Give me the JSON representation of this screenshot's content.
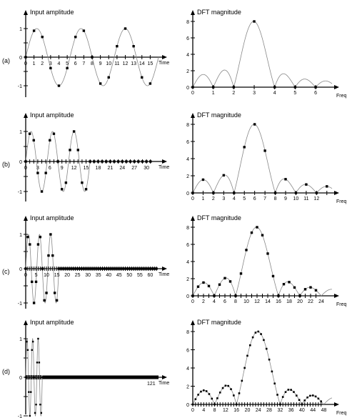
{
  "row_labels": [
    "(a)",
    "(b)",
    "(c)",
    "(d)"
  ],
  "chart_data": [
    {
      "type": "scatter",
      "row": "(a)",
      "title": "Input amplitude",
      "xlabel": "Time",
      "x_tick_labels": [
        "0",
        "1",
        "2",
        "3",
        "4",
        "5",
        "6",
        "7",
        "8",
        "9",
        "10",
        "11",
        "12",
        "13",
        "14",
        "15"
      ],
      "y_tick_labels": [
        "-1",
        "-0.5",
        "0",
        "0.5",
        "1"
      ],
      "xlim": [
        0,
        16
      ],
      "ylim": [
        -1,
        1
      ],
      "n_samples": 16,
      "cycles": 3,
      "continuous_curve": true,
      "values": [
        0,
        0.924,
        0.707,
        -0.383,
        -1,
        -0.383,
        0.707,
        0.924,
        0,
        -0.924,
        -0.707,
        0.383,
        1,
        0.383,
        -0.707,
        -0.924
      ]
    },
    {
      "type": "line",
      "row": "(a)",
      "title": "DFT magnitude",
      "xlabel": "Freq",
      "x_tick_labels": [
        "0",
        "1",
        "2",
        "3",
        "4",
        "5",
        "6"
      ],
      "y_tick_labels": [
        "0",
        "2",
        "4",
        "6",
        "8"
      ],
      "xlim": [
        0,
        6.8
      ],
      "ylim": [
        0,
        8
      ],
      "n_samples": 16,
      "cycles": 3,
      "dft_points": [
        0,
        0,
        0,
        8,
        0,
        0,
        0
      ]
    },
    {
      "type": "scatter",
      "row": "(b)",
      "title": "Input amplitude",
      "xlabel": "Time",
      "x_tick_labels": [
        "0",
        "3",
        "6",
        "9",
        "12",
        "15",
        "18",
        "21",
        "24",
        "27",
        "30"
      ],
      "y_tick_labels": [
        "-1",
        "-0.5",
        "0",
        "0.5",
        "1"
      ],
      "xlim": [
        0,
        33
      ],
      "ylim": [
        -1,
        1
      ],
      "n_samples": 16,
      "zero_padded_length": 32,
      "cycles": 3,
      "continuous_curve": true
    },
    {
      "type": "line",
      "row": "(b)",
      "title": "DFT magnitude",
      "xlabel": "Freq",
      "x_tick_labels": [
        "0",
        "1",
        "2",
        "3",
        "4",
        "5",
        "6",
        "7",
        "8",
        "9",
        "10",
        "11",
        "12"
      ],
      "y_tick_labels": [
        "0",
        "2",
        "4",
        "6",
        "8"
      ],
      "xlim": [
        0,
        13.5
      ],
      "ylim": [
        0,
        8
      ],
      "n_samples": 16,
      "cycles": 3,
      "dft_length": 32
    },
    {
      "type": "scatter",
      "row": "(c)",
      "title": "Input amplitude",
      "xlabel": "Time",
      "x_tick_labels": [
        "0",
        "5",
        "10",
        "15",
        "20",
        "25",
        "30",
        "35",
        "40",
        "45",
        "50",
        "55",
        "60"
      ],
      "y_tick_labels": [
        "-1",
        "-0.5",
        "0",
        "0.5",
        "1"
      ],
      "xlim": [
        0,
        64
      ],
      "ylim": [
        -1,
        1
      ],
      "n_samples": 16,
      "zero_padded_length": 64,
      "cycles": 3,
      "continuous_curve": true
    },
    {
      "type": "line",
      "row": "(c)",
      "title": "DFT magnitude",
      "xlabel": "Freq",
      "x_tick_labels": [
        "0",
        "2",
        "4",
        "6",
        "8",
        "10",
        "12",
        "14",
        "16",
        "18",
        "20",
        "22",
        "24"
      ],
      "y_tick_labels": [
        "0",
        "2",
        "4",
        "6",
        "8"
      ],
      "xlim": [
        0,
        26
      ],
      "ylim": [
        0,
        8
      ],
      "n_samples": 16,
      "cycles": 3,
      "dft_length": 64,
      "markers_up_to": 23
    },
    {
      "type": "scatter",
      "row": "(d)",
      "title": "Input amplitude",
      "xlabel": "Time",
      "x_tick_labels": [
        "121"
      ],
      "y_tick_labels": [
        "-1",
        "-0.5",
        "0",
        "0.5",
        "1"
      ],
      "xlim": [
        0,
        128
      ],
      "ylim": [
        -1,
        1
      ],
      "n_samples": 16,
      "zero_padded_length": 128,
      "cycles": 3,
      "continuous_curve": true
    },
    {
      "type": "line",
      "row": "(d)",
      "title": "DFT magnitude",
      "xlabel": "Freq",
      "x_tick_labels": [
        "0",
        "4",
        "8",
        "12",
        "16",
        "20",
        "24",
        "28",
        "32",
        "36",
        "40",
        "44",
        "48"
      ],
      "y_tick_labels": [
        "0",
        "2",
        "4",
        "6",
        "8"
      ],
      "xlim": [
        0,
        51
      ],
      "ylim": [
        0,
        8
      ],
      "n_samples": 16,
      "cycles": 3,
      "dft_length": 128,
      "markers_up_to": 47
    }
  ]
}
